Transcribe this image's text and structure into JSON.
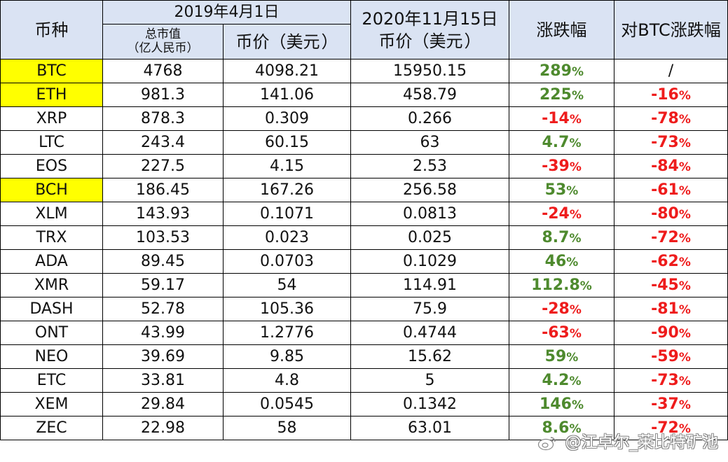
{
  "header": {
    "coin": "币种",
    "date_2019": "2019年4月1日",
    "market_cap_line1": "总市值",
    "market_cap_line2": "（亿人民币）",
    "price_2019": "币价（美元",
    "date_2020": "2020年11月15日",
    "price_2020": "币价（美元",
    "change": "涨跌幅",
    "vs_btc": "对BTC涨跌幅"
  },
  "rows": [
    {
      "coin": "BTC",
      "highlight": true,
      "cap": "4768",
      "p2019": "4098.21",
      "p2020": "15950.15",
      "chg_num": "289",
      "chg_dir": "up",
      "btc_num": "",
      "btc_text": "/",
      "btc_dir": "none"
    },
    {
      "coin": "ETH",
      "highlight": true,
      "cap": "981.3",
      "p2019": "141.06",
      "p2020": "458.79",
      "chg_num": "225",
      "chg_dir": "up",
      "btc_num": "-16",
      "btc_dir": "down"
    },
    {
      "coin": "XRP",
      "highlight": false,
      "cap": "878.3",
      "p2019": "0.309",
      "p2020": "0.266",
      "chg_num": "-14",
      "chg_dir": "down",
      "btc_num": "-78",
      "btc_dir": "down"
    },
    {
      "coin": "LTC",
      "highlight": false,
      "cap": "243.4",
      "p2019": "60.15",
      "p2020": "63",
      "chg_num": "4.7",
      "chg_dir": "up",
      "btc_num": "-73",
      "btc_dir": "down"
    },
    {
      "coin": "EOS",
      "highlight": false,
      "cap": "227.5",
      "p2019": "4.15",
      "p2020": "2.53",
      "chg_num": "-39",
      "chg_dir": "down",
      "btc_num": "-84",
      "btc_dir": "down"
    },
    {
      "coin": "BCH",
      "highlight": true,
      "cap": "186.45",
      "p2019": "167.26",
      "p2020": "256.58",
      "chg_num": "53",
      "chg_dir": "up",
      "btc_num": "-61",
      "btc_dir": "down"
    },
    {
      "coin": "XLM",
      "highlight": false,
      "cap": "143.93",
      "p2019": "0.1071",
      "p2020": "0.0813",
      "chg_num": "-24",
      "chg_dir": "down",
      "btc_num": "-80",
      "btc_dir": "down"
    },
    {
      "coin": "TRX",
      "highlight": false,
      "cap": "103.53",
      "p2019": "0.023",
      "p2020": "0.025",
      "chg_num": "8.7",
      "chg_dir": "up",
      "btc_num": "-72",
      "btc_dir": "down"
    },
    {
      "coin": "ADA",
      "highlight": false,
      "cap": "89.45",
      "p2019": "0.0703",
      "p2020": "0.1029",
      "chg_num": "46",
      "chg_dir": "up",
      "btc_num": "-62",
      "btc_dir": "down"
    },
    {
      "coin": "XMR",
      "highlight": false,
      "cap": "59.17",
      "p2019": "54",
      "p2020": "114.91",
      "chg_num": "112.8",
      "chg_dir": "up",
      "btc_num": "-45",
      "btc_dir": "down"
    },
    {
      "coin": "DASH",
      "highlight": false,
      "cap": "52.78",
      "p2019": "105.36",
      "p2020": "75.9",
      "chg_num": "-28",
      "chg_dir": "down",
      "btc_num": "-81",
      "btc_dir": "down"
    },
    {
      "coin": "ONT",
      "highlight": false,
      "cap": "43.99",
      "p2019": "1.2776",
      "p2020": "0.4744",
      "chg_num": "-63",
      "chg_dir": "down",
      "btc_num": "-90",
      "btc_dir": "down"
    },
    {
      "coin": "NEO",
      "highlight": false,
      "cap": "39.69",
      "p2019": "9.85",
      "p2020": "15.62",
      "chg_num": "59",
      "chg_dir": "up",
      "btc_num": "-59",
      "btc_dir": "down"
    },
    {
      "coin": "ETC",
      "highlight": false,
      "cap": "33.81",
      "p2019": "4.8",
      "p2020": "5",
      "chg_num": "4.2",
      "chg_dir": "up",
      "btc_num": "-73",
      "btc_dir": "down"
    },
    {
      "coin": "XEM",
      "highlight": false,
      "cap": "29.84",
      "p2019": "0.0545",
      "p2020": "0.1342",
      "chg_num": "146",
      "chg_dir": "up",
      "btc_num": "-37",
      "btc_dir": "down"
    },
    {
      "coin": "ZEC",
      "highlight": false,
      "cap": "22.98",
      "p2019": "58",
      "p2020": "63.01",
      "chg_num": "8.6",
      "chg_dir": "up",
      "btc_num": "-72",
      "btc_dir": "down"
    }
  ],
  "percent_sign": "%",
  "watermark": "@江卓尔_莱比特矿池",
  "colors": {
    "header_bg": "#dae3f3",
    "highlight": "#ffff00",
    "up": "#4e8a2e",
    "down": "#ee1c1c"
  }
}
